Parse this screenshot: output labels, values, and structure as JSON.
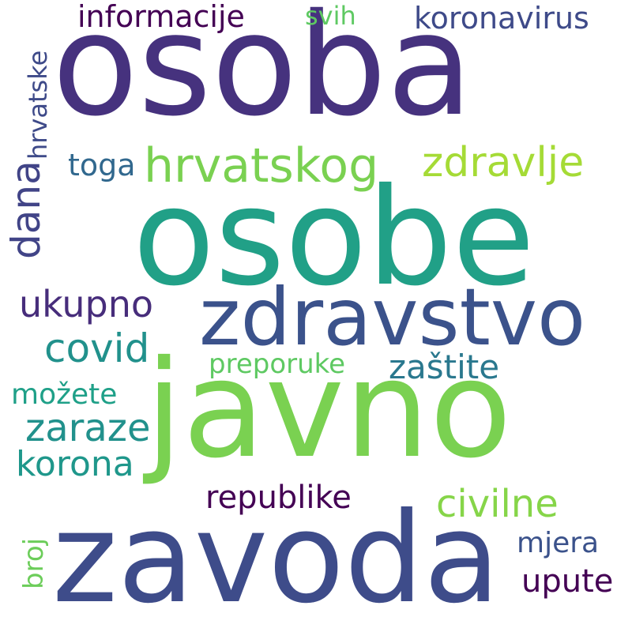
{
  "words": [
    {
      "text": "osoba",
      "color": "#46327e"
    },
    {
      "text": "osobe",
      "color": "#21a087"
    },
    {
      "text": "javno",
      "color": "#7ad151"
    },
    {
      "text": "zavoda",
      "color": "#3e4c8a"
    },
    {
      "text": "zdravstvo",
      "color": "#3b528b"
    },
    {
      "text": "hrvatskog",
      "color": "#7ad151"
    },
    {
      "text": "zdravlje",
      "color": "#a5db36"
    },
    {
      "text": "ukupno",
      "color": "#472d7b"
    },
    {
      "text": "covid",
      "color": "#21918c"
    },
    {
      "text": "zaraze",
      "color": "#21918c"
    },
    {
      "text": "korona",
      "color": "#1f978b"
    },
    {
      "text": "republike",
      "color": "#440154"
    },
    {
      "text": "civilne",
      "color": "#86d549"
    },
    {
      "text": "zaštite",
      "color": "#2a788e"
    },
    {
      "text": "preporuke",
      "color": "#5ec962"
    },
    {
      "text": "možete",
      "color": "#1fa088"
    },
    {
      "text": "informacije",
      "color": "#440154"
    },
    {
      "text": "svih",
      "color": "#5ec962"
    },
    {
      "text": "koronavirus",
      "color": "#3e4a89"
    },
    {
      "text": "toga",
      "color": "#31688e"
    },
    {
      "text": "mjera",
      "color": "#3b528b"
    },
    {
      "text": "upute",
      "color": "#440154"
    },
    {
      "text": "dana",
      "color": "#414487"
    },
    {
      "text": "hrvatske",
      "color": "#3e4a89"
    },
    {
      "text": "broj",
      "color": "#6ccd5a"
    }
  ]
}
